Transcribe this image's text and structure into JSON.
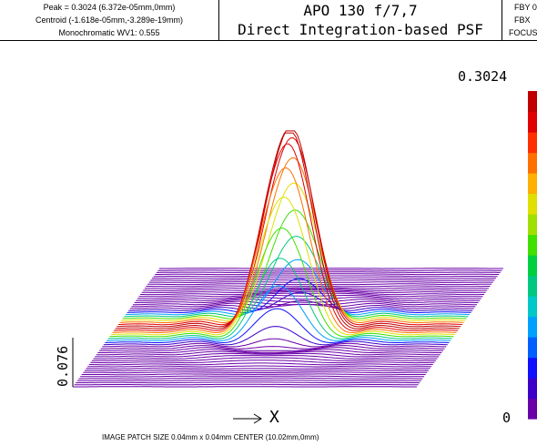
{
  "header": {
    "peak_line": "Peak = 0.3024 (6.372e-05mm,0mm)",
    "centroid_line": "Centroid (-1.618e-05mm,-3.289e-19mm)",
    "mono_line": "Monochromatic WV1: 0.555",
    "title_line1": "APO 130 f/7,7",
    "title_line2": "Direct Integration-based PSF",
    "right_line1": "FBY 0",
    "right_line2": "FBX",
    "right_line3": "FOCUS"
  },
  "colorbar": {
    "max_label": "0.3024",
    "min_label": "0",
    "colors": [
      "#6a00a8",
      "#3c00c8",
      "#1010ff",
      "#0060ff",
      "#00a0ff",
      "#00c8c8",
      "#00c880",
      "#00d040",
      "#40e000",
      "#a0e000",
      "#e0e000",
      "#ffb000",
      "#ff7000",
      "#ff3000",
      "#e00000",
      "#c00000"
    ]
  },
  "footer": {
    "patch_text": "IMAGE PATCH SIZE 0.04mm x 0.04mm     CENTER (10.02mm,0mm)",
    "x_axis_label": "X"
  },
  "scale_bar": {
    "label": "0.076"
  },
  "chart_data": {
    "type": "surface",
    "title": "Direct Integration-based PSF",
    "xlabel": "X",
    "z_max": 0.3024,
    "z_min": 0,
    "scale_bar_value": 0.076,
    "num_profiles": 60,
    "center": [
      10.02,
      0
    ],
    "patch_size_mm": [
      0.04,
      0.04
    ],
    "peak_offset_mm": [
      6.372e-05,
      0
    ]
  }
}
